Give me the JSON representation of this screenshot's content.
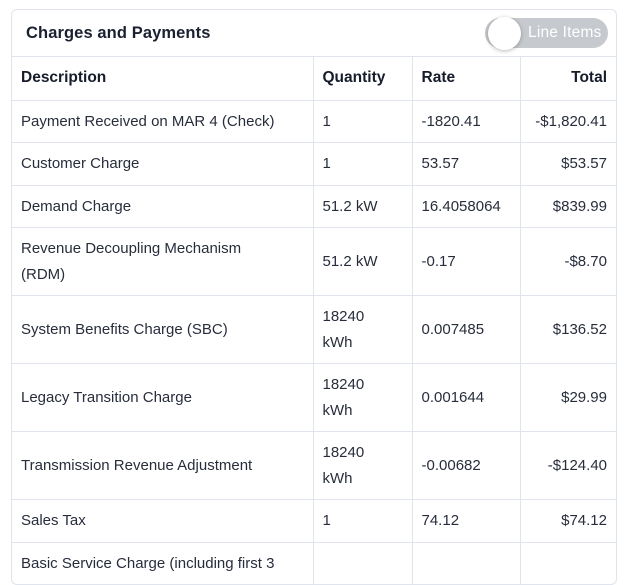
{
  "panel": {
    "title": "Charges and Payments",
    "toggle": {
      "label": "Line Items",
      "state": "off"
    }
  },
  "table": {
    "columns": [
      {
        "key": "description",
        "label": "Description",
        "align": "left"
      },
      {
        "key": "quantity",
        "label": "Quantity",
        "align": "left"
      },
      {
        "key": "rate",
        "label": "Rate",
        "align": "left"
      },
      {
        "key": "total",
        "label": "Total",
        "align": "right"
      }
    ],
    "rows": [
      {
        "description": "Payment Received on MAR 4 (Check)",
        "quantity": "1",
        "rate": "-1820.41",
        "total": "-$1,820.41"
      },
      {
        "description": "Customer Charge",
        "quantity": "1",
        "rate": "53.57",
        "total": "$53.57"
      },
      {
        "description": "Demand Charge",
        "quantity": "51.2 kW",
        "rate": "16.4058064",
        "total": "$839.99"
      },
      {
        "description": "Revenue Decoupling Mechanism\n(RDM)",
        "quantity": "51.2 kW",
        "rate": "-0.17",
        "total": "-$8.70"
      },
      {
        "description": "System Benefits Charge (SBC)",
        "quantity": "18240\nkWh",
        "rate": "0.007485",
        "total": "$136.52"
      },
      {
        "description": "Legacy Transition Charge",
        "quantity": "18240\nkWh",
        "rate": "0.001644",
        "total": "$29.99"
      },
      {
        "description": "Transmission Revenue Adjustment",
        "quantity": "18240\nkWh",
        "rate": "-0.00682",
        "total": "-$124.40"
      },
      {
        "description": "Sales Tax",
        "quantity": "1",
        "rate": "74.12",
        "total": "$74.12"
      },
      {
        "description": "Basic Service Charge (including first 3",
        "quantity": "",
        "rate": "",
        "total": ""
      }
    ]
  },
  "colors": {
    "border": "#e0e4ec",
    "title_text": "#1a2030",
    "body_text": "#272d3b",
    "toggle_background": "#c6c9cd",
    "toggle_text": "#ffffff",
    "toggle_knob": "#ffffff"
  }
}
